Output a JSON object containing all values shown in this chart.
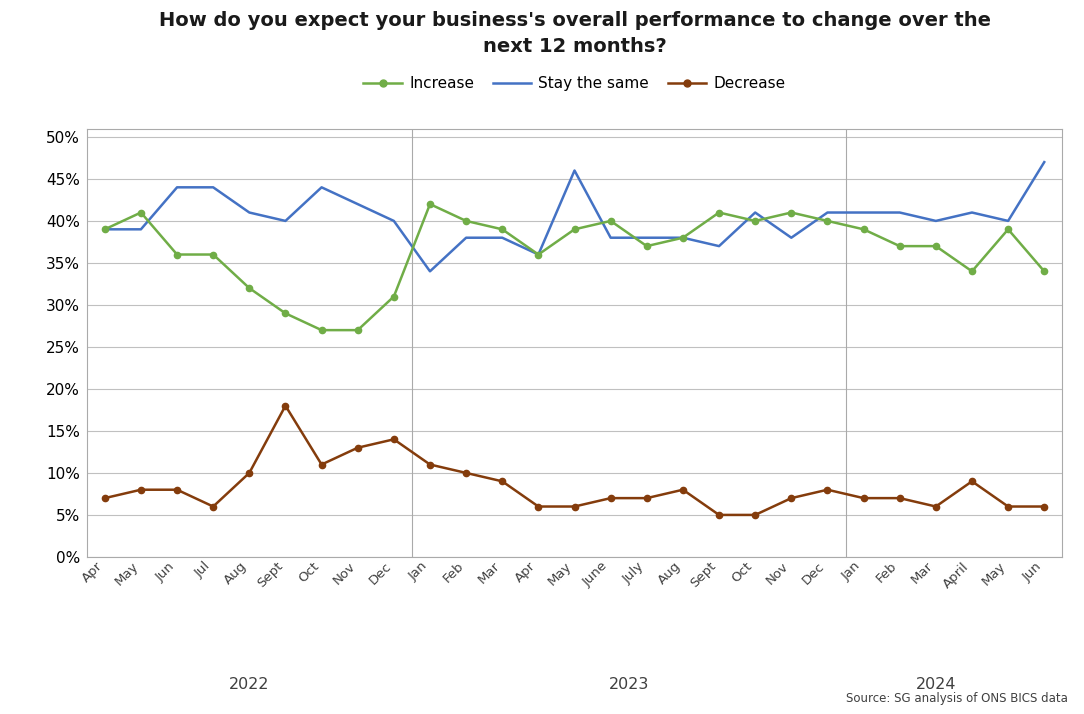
{
  "title": "How do you expect your business's overall performance to change over the\nnext 12 months?",
  "source": "Source: SG analysis of ONS BICS data",
  "labels": [
    "Apr",
    "May",
    "Jun",
    "Jul",
    "Aug",
    "Sept",
    "Oct",
    "Nov",
    "Dec",
    "Jan",
    "Feb",
    "Mar",
    "Apr",
    "May",
    "June",
    "July",
    "Aug",
    "Sept",
    "Oct",
    "Nov",
    "Dec",
    "Jan",
    "Feb",
    "Mar",
    "April",
    "May",
    "Jun"
  ],
  "year_labels": [
    [
      "2022",
      4.0
    ],
    [
      "2023",
      14.5
    ],
    [
      "2024",
      23.0
    ]
  ],
  "year_dividers": [
    8.5,
    20.5
  ],
  "increase": [
    39,
    41,
    36,
    36,
    32,
    29,
    27,
    27,
    31,
    42,
    40,
    39,
    36,
    39,
    40,
    37,
    38,
    41,
    40,
    41,
    40,
    39,
    37,
    37,
    34,
    39,
    34
  ],
  "stay_same": [
    39,
    39,
    44,
    44,
    41,
    40,
    44,
    42,
    40,
    34,
    38,
    38,
    36,
    46,
    38,
    38,
    38,
    37,
    41,
    38,
    41,
    41,
    41,
    40,
    41,
    40,
    47
  ],
  "decrease": [
    7,
    8,
    8,
    6,
    10,
    18,
    11,
    13,
    14,
    11,
    10,
    9,
    6,
    6,
    7,
    7,
    8,
    5,
    5,
    7,
    8,
    7,
    7,
    6,
    9,
    6,
    6
  ],
  "increase_color": "#70ad47",
  "stay_same_color": "#4472c4",
  "decrease_color": "#843c0c",
  "background_color": "#ffffff",
  "grid_color": "#c0c0c0",
  "ylim": [
    0,
    51
  ],
  "yticks": [
    0,
    5,
    10,
    15,
    20,
    25,
    30,
    35,
    40,
    45,
    50
  ]
}
